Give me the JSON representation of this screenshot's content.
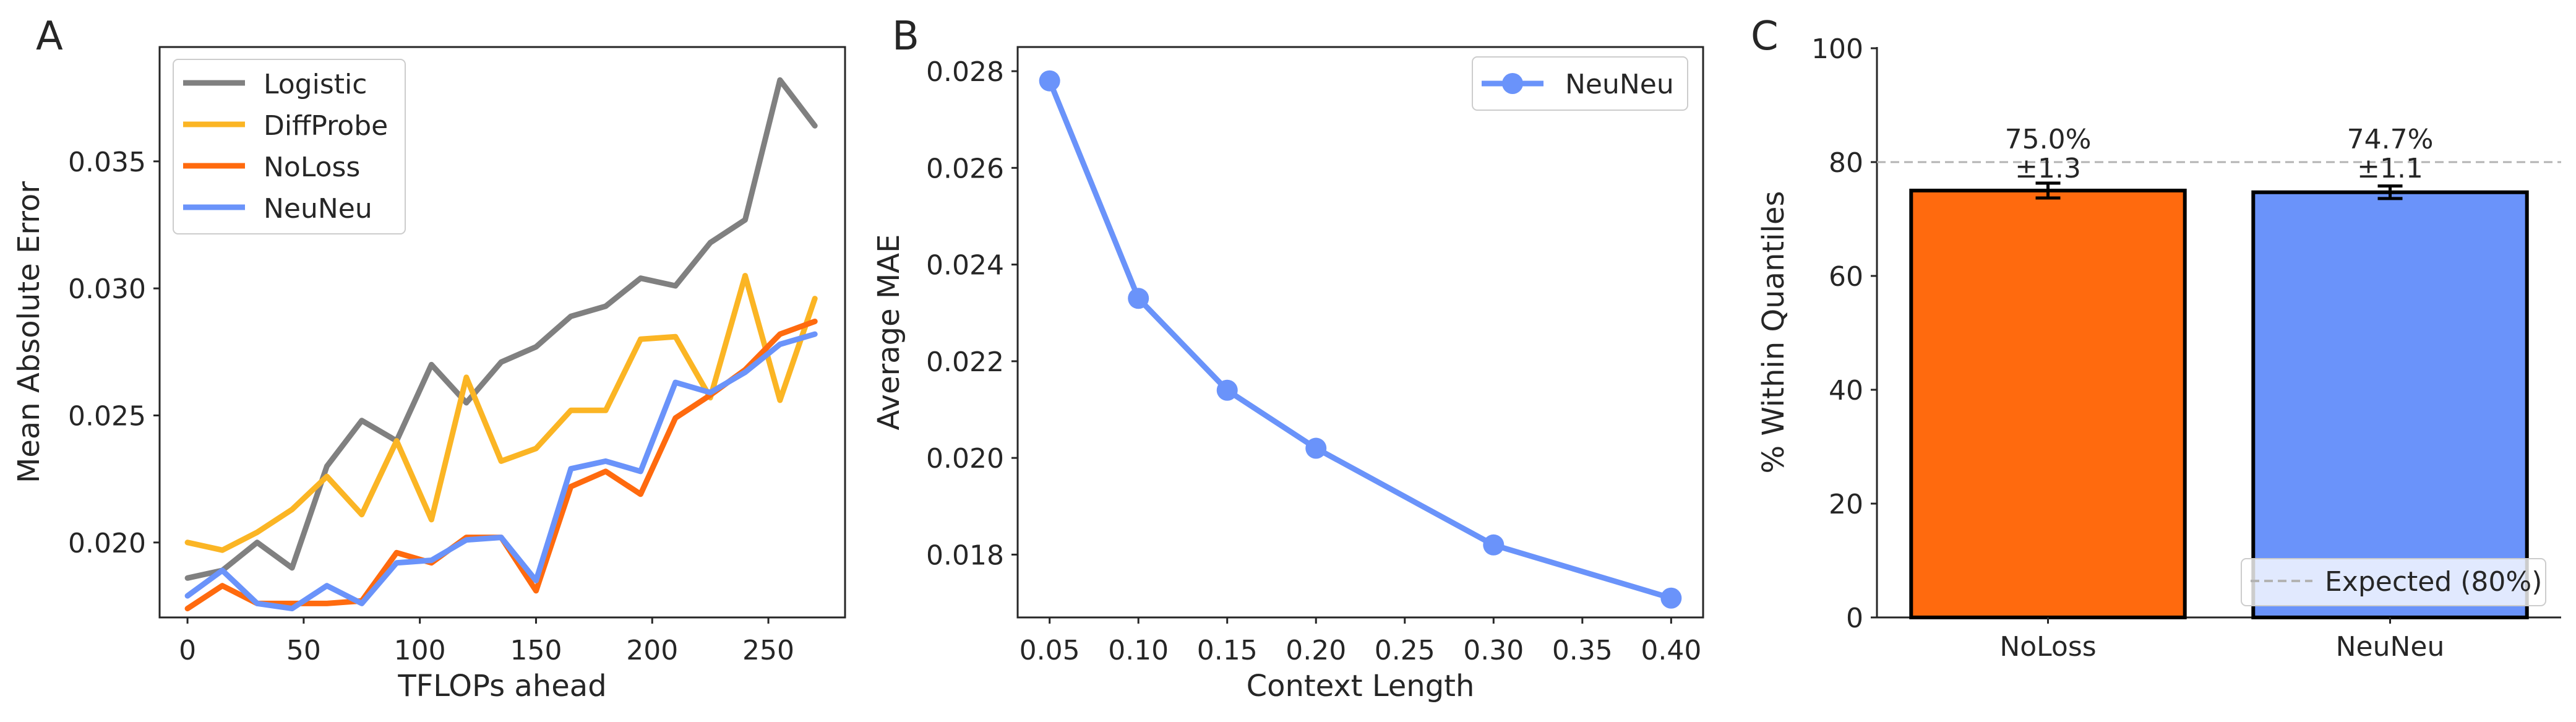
{
  "panel_letters": [
    "A",
    "B",
    "C"
  ],
  "colors": {
    "logistic": "#808080",
    "diffprobe": "#FBB524",
    "noloss": "#FF6A0E",
    "neuneu": "#6A93FA",
    "axis": "#262626",
    "ref_line": "#B3B3B3"
  },
  "chart_data": [
    {
      "type": "line",
      "panel": "A",
      "xlabel": "TFLOPs ahead",
      "ylabel": "Mean Absolute Error",
      "xlim": [
        -12,
        283
      ],
      "ylim": [
        0.01705,
        0.0395
      ],
      "xticks": [
        0,
        50,
        100,
        150,
        200,
        250
      ],
      "xtick_labels": [
        "0",
        "50",
        "100",
        "150",
        "200",
        "250"
      ],
      "yticks": [
        0.02,
        0.025,
        0.03,
        0.035
      ],
      "ytick_labels": [
        "0.020",
        "0.025",
        "0.030",
        "0.035"
      ],
      "grid": false,
      "legend_position": "upper-left",
      "x": [
        0,
        15,
        30,
        45,
        60,
        75,
        90,
        105,
        120,
        135,
        150,
        165,
        180,
        195,
        210,
        225,
        240,
        255,
        270
      ],
      "series": [
        {
          "name": "Logistic",
          "color_key": "logistic",
          "values": [
            0.0186,
            0.0189,
            0.02,
            0.019,
            0.023,
            0.0248,
            0.024,
            0.027,
            0.0255,
            0.0271,
            0.0277,
            0.0289,
            0.0293,
            0.0304,
            0.0301,
            0.0318,
            0.0327,
            0.0382,
            0.0364
          ]
        },
        {
          "name": "DiffProbe",
          "color_key": "diffprobe",
          "values": [
            0.02,
            0.0197,
            0.0204,
            0.0213,
            0.0226,
            0.0211,
            0.024,
            0.0209,
            0.0265,
            0.0232,
            0.0237,
            0.0252,
            0.0252,
            0.028,
            0.0281,
            0.0257,
            0.0305,
            0.0256,
            0.0296
          ]
        },
        {
          "name": "NoLoss",
          "color_key": "noloss",
          "values": [
            0.0174,
            0.0183,
            0.0176,
            0.0176,
            0.0176,
            0.0177,
            0.0196,
            0.0192,
            0.0202,
            0.0202,
            0.0181,
            0.0222,
            0.0228,
            0.0219,
            0.0249,
            0.0258,
            0.0268,
            0.0282,
            0.0287
          ]
        },
        {
          "name": "NeuNeu",
          "color_key": "neuneu",
          "values": [
            0.0179,
            0.0189,
            0.0176,
            0.0174,
            0.0183,
            0.0176,
            0.0192,
            0.0193,
            0.0201,
            0.0202,
            0.0185,
            0.0229,
            0.0232,
            0.0228,
            0.0263,
            0.0259,
            0.0267,
            0.0278,
            0.0282
          ]
        }
      ]
    },
    {
      "type": "line",
      "panel": "B",
      "xlabel": "Context Length",
      "ylabel": "Average MAE",
      "xlim": [
        0.032,
        0.418
      ],
      "ylim": [
        0.0167,
        0.0285
      ],
      "xticks": [
        0.05,
        0.1,
        0.15,
        0.2,
        0.25,
        0.3,
        0.35,
        0.4
      ],
      "xtick_labels": [
        "0.05",
        "0.10",
        "0.15",
        "0.20",
        "0.25",
        "0.30",
        "0.35",
        "0.40"
      ],
      "yticks": [
        0.018,
        0.02,
        0.022,
        0.024,
        0.026,
        0.028
      ],
      "ytick_labels": [
        "0.018",
        "0.020",
        "0.022",
        "0.024",
        "0.026",
        "0.028"
      ],
      "grid": false,
      "legend_position": "upper-right",
      "series": [
        {
          "name": "NeuNeu",
          "color_key": "neuneu",
          "markers": true,
          "x": [
            0.05,
            0.1,
            0.15,
            0.2,
            0.3,
            0.4
          ],
          "values": [
            0.0278,
            0.0233,
            0.0214,
            0.0202,
            0.0182,
            0.0171
          ]
        }
      ]
    },
    {
      "type": "bar",
      "panel": "C",
      "ylabel": "% Within Quantiles",
      "ylim": [
        0,
        100
      ],
      "yticks": [
        0,
        20,
        40,
        60,
        80,
        100
      ],
      "ytick_labels": [
        "0",
        "20",
        "40",
        "60",
        "80",
        "100"
      ],
      "categories": [
        "NoLoss",
        "NeuNeu"
      ],
      "values": [
        75.0,
        74.7
      ],
      "errors": [
        1.3,
        1.1
      ],
      "value_labels": [
        "75.0%",
        "74.7%"
      ],
      "error_labels": [
        "±1.3",
        "±1.1"
      ],
      "bar_color_keys": [
        "noloss",
        "neuneu"
      ],
      "reference_line": {
        "value": 80,
        "label": "Expected (80%)"
      },
      "grid": false,
      "legend_position": "lower-right"
    }
  ]
}
